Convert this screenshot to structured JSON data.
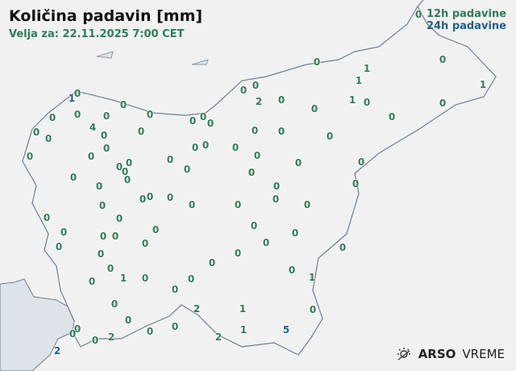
{
  "header": {
    "title": "Količina padavin [mm]",
    "valid": "Velja za: 22.11.2025 7:00 CET"
  },
  "legend": {
    "label_12h": "12h padavine",
    "label_24h": "24h padavine"
  },
  "colors": {
    "h12": "#2e7d5b",
    "h24": "#1f5f8f",
    "sea": "#dde3e8",
    "border": "#6f7f92",
    "land": "#f1f1f1"
  },
  "stations": [
    {
      "v": "0",
      "t": "12h"
    },
    {
      "v": "0",
      "t": "12h"
    },
    {
      "v": "1",
      "t": "12h"
    },
    {
      "v": "0",
      "t": "12h"
    },
    {
      "v": "1",
      "t": "12h"
    },
    {
      "v": "1",
      "t": "12h"
    },
    {
      "v": "0",
      "t": "12h"
    },
    {
      "v": "1",
      "t": "24h"
    },
    {
      "v": "0",
      "t": "12h"
    },
    {
      "v": "0",
      "t": "12h"
    },
    {
      "v": "2",
      "t": "12h"
    },
    {
      "v": "0",
      "t": "12h"
    },
    {
      "v": "1",
      "t": "12h"
    },
    {
      "v": "0",
      "t": "12h"
    },
    {
      "v": "0",
      "t": "12h"
    },
    {
      "v": "0",
      "t": "12h"
    },
    {
      "v": "0",
      "t": "12h"
    },
    {
      "v": "0",
      "t": "12h"
    },
    {
      "v": "0",
      "t": "12h"
    },
    {
      "v": "0",
      "t": "12h"
    },
    {
      "v": "0",
      "t": "12h"
    },
    {
      "v": "0",
      "t": "12h"
    },
    {
      "v": "0",
      "t": "12h"
    },
    {
      "v": "0",
      "t": "12h"
    },
    {
      "v": "0",
      "t": "12h"
    },
    {
      "v": "4",
      "t": "12h"
    },
    {
      "v": "0",
      "t": "12h"
    },
    {
      "v": "0",
      "t": "12h"
    },
    {
      "v": "0",
      "t": "12h"
    },
    {
      "v": "0",
      "t": "12h"
    },
    {
      "v": "0",
      "t": "12h"
    },
    {
      "v": "0",
      "t": "12h"
    },
    {
      "v": "0",
      "t": "12h"
    },
    {
      "v": "0",
      "t": "12h"
    },
    {
      "v": "0",
      "t": "12h"
    },
    {
      "v": "0",
      "t": "12h"
    },
    {
      "v": "0",
      "t": "12h"
    },
    {
      "v": "0",
      "t": "12h"
    },
    {
      "v": "0",
      "t": "12h"
    },
    {
      "v": "0",
      "t": "12h"
    },
    {
      "v": "0",
      "t": "12h"
    },
    {
      "v": "0",
      "t": "12h"
    },
    {
      "v": "0",
      "t": "12h"
    },
    {
      "v": "0",
      "t": "12h"
    },
    {
      "v": "0",
      "t": "12h"
    },
    {
      "v": "0",
      "t": "12h"
    },
    {
      "v": "0",
      "t": "12h"
    },
    {
      "v": "0",
      "t": "12h"
    },
    {
      "v": "0",
      "t": "12h"
    },
    {
      "v": "0",
      "t": "12h"
    },
    {
      "v": "0",
      "t": "12h"
    },
    {
      "v": "0",
      "t": "12h"
    },
    {
      "v": "0",
      "t": "12h"
    },
    {
      "v": "0",
      "t": "12h"
    },
    {
      "v": "0",
      "t": "12h"
    },
    {
      "v": "0",
      "t": "12h"
    },
    {
      "v": "0",
      "t": "12h"
    },
    {
      "v": "0",
      "t": "12h"
    },
    {
      "v": "0",
      "t": "12h"
    },
    {
      "v": "0",
      "t": "12h"
    },
    {
      "v": "0",
      "t": "12h"
    },
    {
      "v": "0",
      "t": "12h"
    },
    {
      "v": "0",
      "t": "12h"
    },
    {
      "v": "0",
      "t": "12h"
    },
    {
      "v": "0",
      "t": "12h"
    },
    {
      "v": "0",
      "t": "12h"
    },
    {
      "v": "0",
      "t": "12h"
    },
    {
      "v": "0",
      "t": "12h"
    },
    {
      "v": "0",
      "t": "12h"
    },
    {
      "v": "0",
      "t": "12h"
    },
    {
      "v": "0",
      "t": "12h"
    },
    {
      "v": "0",
      "t": "12h"
    },
    {
      "v": "0",
      "t": "12h"
    },
    {
      "v": "0",
      "t": "12h"
    },
    {
      "v": "0",
      "t": "12h"
    },
    {
      "v": "0",
      "t": "12h"
    },
    {
      "v": "0",
      "t": "12h"
    },
    {
      "v": "0",
      "t": "12h"
    },
    {
      "v": "0",
      "t": "12h"
    },
    {
      "v": "1",
      "t": "12h"
    },
    {
      "v": "0",
      "t": "12h"
    },
    {
      "v": "0",
      "t": "12h"
    },
    {
      "v": "1",
      "t": "12h"
    },
    {
      "v": "0",
      "t": "12h"
    },
    {
      "v": "0",
      "t": "12h"
    },
    {
      "v": "2",
      "t": "12h"
    },
    {
      "v": "1",
      "t": "12h"
    },
    {
      "v": "0",
      "t": "12h"
    },
    {
      "v": "0",
      "t": "12h"
    },
    {
      "v": "0",
      "t": "12h"
    },
    {
      "v": "0",
      "t": "12h"
    },
    {
      "v": "2",
      "t": "12h"
    },
    {
      "v": "0",
      "t": "12h"
    },
    {
      "v": "0",
      "t": "12h"
    },
    {
      "v": "0",
      "t": "12h"
    },
    {
      "v": "2",
      "t": "12h"
    },
    {
      "v": "1",
      "t": "12h"
    },
    {
      "v": "5",
      "t": "24h"
    },
    {
      "v": "2",
      "t": "24h"
    }
  ],
  "logo": {
    "brand": "ARSO",
    "product": "VREME",
    "icon": "sun-cloud-icon"
  }
}
